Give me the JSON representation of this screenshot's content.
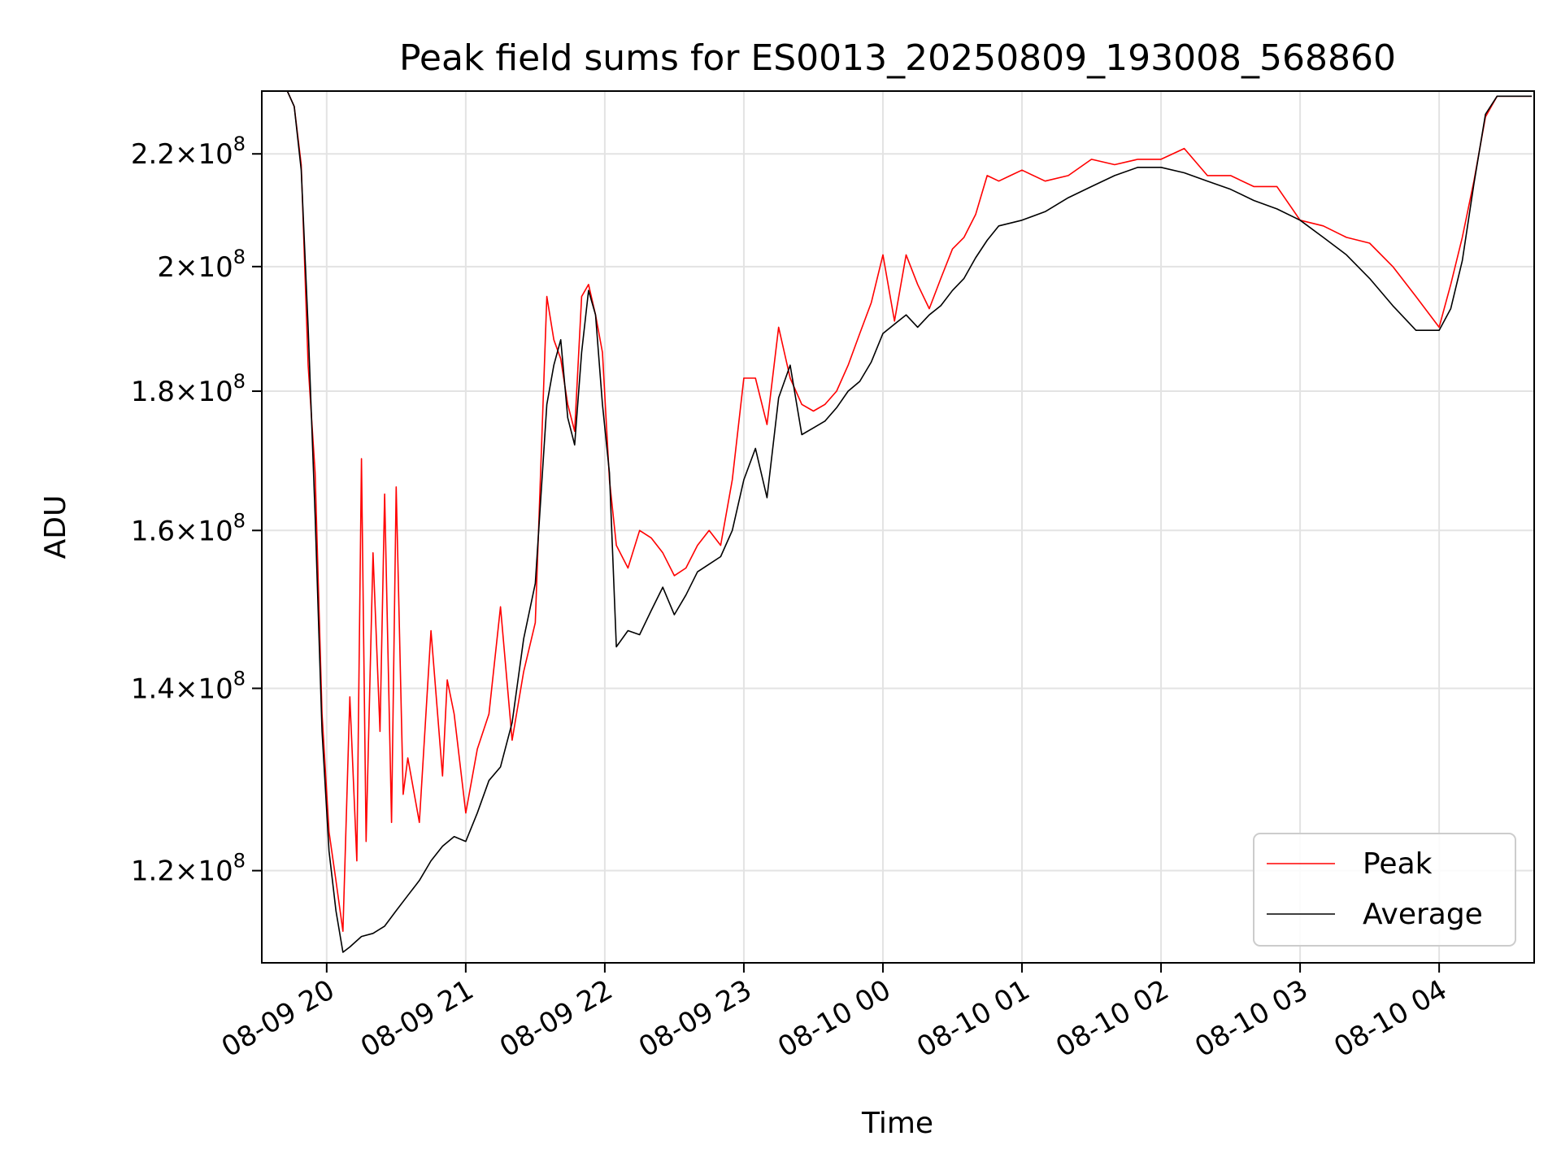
{
  "chart_data": {
    "type": "line",
    "title": "Peak field sums for ES0013_20250809_193008_568860",
    "xlabel": "Time",
    "ylabel": "ADU",
    "yscale": "log",
    "xlim": [
      "2025-08-09 19:32",
      "2025-08-10 04:41"
    ],
    "ylim": [
      111000000,
      232000000
    ],
    "grid": true,
    "legend_position": "lower-right",
    "x_ticks": [
      {
        "t": "2025-08-09 20:00",
        "label": "08-09 20"
      },
      {
        "t": "2025-08-09 21:00",
        "label": "08-09 21"
      },
      {
        "t": "2025-08-09 22:00",
        "label": "08-09 22"
      },
      {
        "t": "2025-08-09 23:00",
        "label": "08-09 23"
      },
      {
        "t": "2025-08-10 00:00",
        "label": "08-10 00"
      },
      {
        "t": "2025-08-10 01:00",
        "label": "08-10 01"
      },
      {
        "t": "2025-08-10 02:00",
        "label": "08-10 02"
      },
      {
        "t": "2025-08-10 03:00",
        "label": "08-10 03"
      },
      {
        "t": "2025-08-10 04:00",
        "label": "08-10 04"
      }
    ],
    "y_ticks": [
      {
        "v": 120000000,
        "mant": "1.2",
        "exp": "8"
      },
      {
        "v": 140000000,
        "mant": "1.4",
        "exp": "8"
      },
      {
        "v": 160000000,
        "mant": "1.6",
        "exp": "8"
      },
      {
        "v": 180000000,
        "mant": "1.8",
        "exp": "8"
      },
      {
        "v": 200000000,
        "mant": "2",
        "exp": "8"
      },
      {
        "v": 220000000,
        "mant": "2.2",
        "exp": "8"
      }
    ],
    "series": [
      {
        "name": "Average",
        "color": "#000000",
        "x": [
          "2025-08-09 19:43",
          "2025-08-09 19:46",
          "2025-08-09 19:49",
          "2025-08-09 19:52",
          "2025-08-09 19:55",
          "2025-08-09 19:58",
          "2025-08-09 20:01",
          "2025-08-09 20:04",
          "2025-08-09 20:07",
          "2025-08-09 20:10",
          "2025-08-09 20:15",
          "2025-08-09 20:20",
          "2025-08-09 20:25",
          "2025-08-09 20:30",
          "2025-08-09 20:35",
          "2025-08-09 20:40",
          "2025-08-09 20:45",
          "2025-08-09 20:50",
          "2025-08-09 20:55",
          "2025-08-09 21:00",
          "2025-08-09 21:05",
          "2025-08-09 21:10",
          "2025-08-09 21:15",
          "2025-08-09 21:20",
          "2025-08-09 21:25",
          "2025-08-09 21:30",
          "2025-08-09 21:35",
          "2025-08-09 21:38",
          "2025-08-09 21:41",
          "2025-08-09 21:44",
          "2025-08-09 21:47",
          "2025-08-09 21:50",
          "2025-08-09 21:53",
          "2025-08-09 21:56",
          "2025-08-09 21:59",
          "2025-08-09 22:02",
          "2025-08-09 22:05",
          "2025-08-09 22:10",
          "2025-08-09 22:15",
          "2025-08-09 22:20",
          "2025-08-09 22:25",
          "2025-08-09 22:30",
          "2025-08-09 22:35",
          "2025-08-09 22:40",
          "2025-08-09 22:45",
          "2025-08-09 22:50",
          "2025-08-09 22:55",
          "2025-08-09 23:00",
          "2025-08-09 23:05",
          "2025-08-09 23:10",
          "2025-08-09 23:15",
          "2025-08-09 23:20",
          "2025-08-09 23:25",
          "2025-08-09 23:30",
          "2025-08-09 23:35",
          "2025-08-09 23:40",
          "2025-08-09 23:45",
          "2025-08-09 23:50",
          "2025-08-09 23:55",
          "2025-08-10 00:00",
          "2025-08-10 00:05",
          "2025-08-10 00:10",
          "2025-08-10 00:15",
          "2025-08-10 00:20",
          "2025-08-10 00:25",
          "2025-08-10 00:30",
          "2025-08-10 00:35",
          "2025-08-10 00:40",
          "2025-08-10 00:45",
          "2025-08-10 00:50",
          "2025-08-10 00:55",
          "2025-08-10 01:00",
          "2025-08-10 01:10",
          "2025-08-10 01:20",
          "2025-08-10 01:30",
          "2025-08-10 01:40",
          "2025-08-10 01:50",
          "2025-08-10 02:00",
          "2025-08-10 02:10",
          "2025-08-10 02:20",
          "2025-08-10 02:30",
          "2025-08-10 02:40",
          "2025-08-10 02:50",
          "2025-08-10 03:00",
          "2025-08-10 03:10",
          "2025-08-10 03:20",
          "2025-08-10 03:30",
          "2025-08-10 03:40",
          "2025-08-10 03:50",
          "2025-08-10 04:00",
          "2025-08-10 04:05",
          "2025-08-10 04:10",
          "2025-08-10 04:15",
          "2025-08-10 04:20",
          "2025-08-10 04:25",
          "2025-08-10 04:30",
          "2025-08-10 04:40"
        ],
        "values": [
          232000000,
          229000000,
          217000000,
          190000000,
          162000000,
          135000000,
          122000000,
          116000000,
          112000000,
          112500000,
          113500000,
          113800000,
          114500000,
          116000000,
          117500000,
          119000000,
          121000000,
          122500000,
          123500000,
          123000000,
          126000000,
          129500000,
          131000000,
          136000000,
          146000000,
          153000000,
          178000000,
          184000000,
          188000000,
          176000000,
          172000000,
          186000000,
          196000000,
          192000000,
          178000000,
          168000000,
          145000000,
          147000000,
          146500000,
          149500000,
          152500000,
          149000000,
          151500000,
          154500000,
          155500000,
          156500000,
          160000000,
          167000000,
          171500000,
          164500000,
          179000000,
          184000000,
          173500000,
          174500000,
          175500000,
          177500000,
          180000000,
          181500000,
          184500000,
          189000000,
          190500000,
          192000000,
          190000000,
          192000000,
          193500000,
          196000000,
          198000000,
          201500000,
          204500000,
          207000000,
          207500000,
          208000000,
          209500000,
          212000000,
          214000000,
          216000000,
          217500000,
          217500000,
          216500000,
          215000000,
          213500000,
          211500000,
          210000000,
          208000000,
          205000000,
          202000000,
          198000000,
          193500000,
          189500000,
          189500000,
          193000000,
          201000000,
          214500000,
          227500000,
          231000000,
          231000000,
          231000000
        ]
      },
      {
        "name": "Peak",
        "color": "#ff0000",
        "x": [
          "2025-08-09 19:43",
          "2025-08-09 19:46",
          "2025-08-09 19:49",
          "2025-08-09 19:52",
          "2025-08-09 19:55",
          "2025-08-09 19:58",
          "2025-08-09 20:01",
          "2025-08-09 20:04",
          "2025-08-09 20:07",
          "2025-08-09 20:10",
          "2025-08-09 20:13",
          "2025-08-09 20:15",
          "2025-08-09 20:17",
          "2025-08-09 20:20",
          "2025-08-09 20:23",
          "2025-08-09 20:25",
          "2025-08-09 20:28",
          "2025-08-09 20:30",
          "2025-08-09 20:33",
          "2025-08-09 20:35",
          "2025-08-09 20:40",
          "2025-08-09 20:45",
          "2025-08-09 20:50",
          "2025-08-09 20:52",
          "2025-08-09 20:55",
          "2025-08-09 21:00",
          "2025-08-09 21:05",
          "2025-08-09 21:10",
          "2025-08-09 21:15",
          "2025-08-09 21:20",
          "2025-08-09 21:25",
          "2025-08-09 21:30",
          "2025-08-09 21:35",
          "2025-08-09 21:38",
          "2025-08-09 21:41",
          "2025-08-09 21:44",
          "2025-08-09 21:47",
          "2025-08-09 21:50",
          "2025-08-09 21:53",
          "2025-08-09 21:56",
          "2025-08-09 21:59",
          "2025-08-09 22:02",
          "2025-08-09 22:05",
          "2025-08-09 22:10",
          "2025-08-09 22:15",
          "2025-08-09 22:20",
          "2025-08-09 22:25",
          "2025-08-09 22:30",
          "2025-08-09 22:35",
          "2025-08-09 22:40",
          "2025-08-09 22:45",
          "2025-08-09 22:50",
          "2025-08-09 22:55",
          "2025-08-09 23:00",
          "2025-08-09 23:05",
          "2025-08-09 23:10",
          "2025-08-09 23:15",
          "2025-08-09 23:20",
          "2025-08-09 23:25",
          "2025-08-09 23:30",
          "2025-08-09 23:35",
          "2025-08-09 23:40",
          "2025-08-09 23:45",
          "2025-08-09 23:50",
          "2025-08-09 23:55",
          "2025-08-10 00:00",
          "2025-08-10 00:05",
          "2025-08-10 00:10",
          "2025-08-10 00:15",
          "2025-08-10 00:20",
          "2025-08-10 00:25",
          "2025-08-10 00:30",
          "2025-08-10 00:35",
          "2025-08-10 00:40",
          "2025-08-10 00:45",
          "2025-08-10 00:50",
          "2025-08-10 00:55",
          "2025-08-10 01:00",
          "2025-08-10 01:10",
          "2025-08-10 01:20",
          "2025-08-10 01:30",
          "2025-08-10 01:40",
          "2025-08-10 01:50",
          "2025-08-10 02:00",
          "2025-08-10 02:10",
          "2025-08-10 02:20",
          "2025-08-10 02:30",
          "2025-08-10 02:40",
          "2025-08-10 02:50",
          "2025-08-10 03:00",
          "2025-08-10 03:10",
          "2025-08-10 03:20",
          "2025-08-10 03:30",
          "2025-08-10 03:40",
          "2025-08-10 03:50",
          "2025-08-10 04:00",
          "2025-08-10 04:05",
          "2025-08-10 04:10",
          "2025-08-10 04:15",
          "2025-08-10 04:20",
          "2025-08-10 04:25",
          "2025-08-10 04:30",
          "2025-08-10 04:40"
        ],
        "values": [
          232000000,
          229000000,
          218000000,
          184000000,
          168000000,
          137000000,
          124000000,
          119000000,
          114000000,
          139000000,
          121000000,
          170000000,
          123000000,
          157000000,
          135000000,
          165000000,
          125000000,
          166000000,
          128000000,
          132000000,
          125000000,
          147000000,
          130000000,
          141000000,
          137000000,
          126000000,
          133000000,
          137000000,
          150000000,
          134000000,
          142000000,
          148000000,
          195000000,
          188000000,
          185000000,
          178000000,
          174000000,
          195000000,
          197000000,
          192000000,
          186000000,
          167000000,
          158000000,
          155000000,
          160000000,
          159000000,
          157000000,
          154000000,
          155000000,
          158000000,
          160000000,
          158000000,
          167000000,
          182000000,
          182000000,
          175000000,
          190000000,
          182000000,
          178000000,
          177000000,
          178000000,
          180000000,
          184000000,
          189000000,
          194000000,
          202000000,
          191000000,
          202000000,
          197000000,
          193000000,
          198000000,
          203000000,
          205000000,
          209000000,
          216000000,
          215000000,
          216000000,
          217000000,
          215000000,
          216000000,
          219000000,
          218000000,
          219000000,
          219000000,
          221000000,
          216000000,
          216000000,
          214000000,
          214000000,
          208000000,
          207000000,
          205000000,
          204000000,
          200000000,
          195000000,
          190000000,
          197000000,
          205000000,
          215000000,
          227000000,
          231000000,
          231000000,
          231000000
        ]
      }
    ]
  },
  "legend": {
    "items": [
      {
        "label": "Peak",
        "color": "#ff0000"
      },
      {
        "label": "Average",
        "color": "#000000"
      }
    ]
  }
}
